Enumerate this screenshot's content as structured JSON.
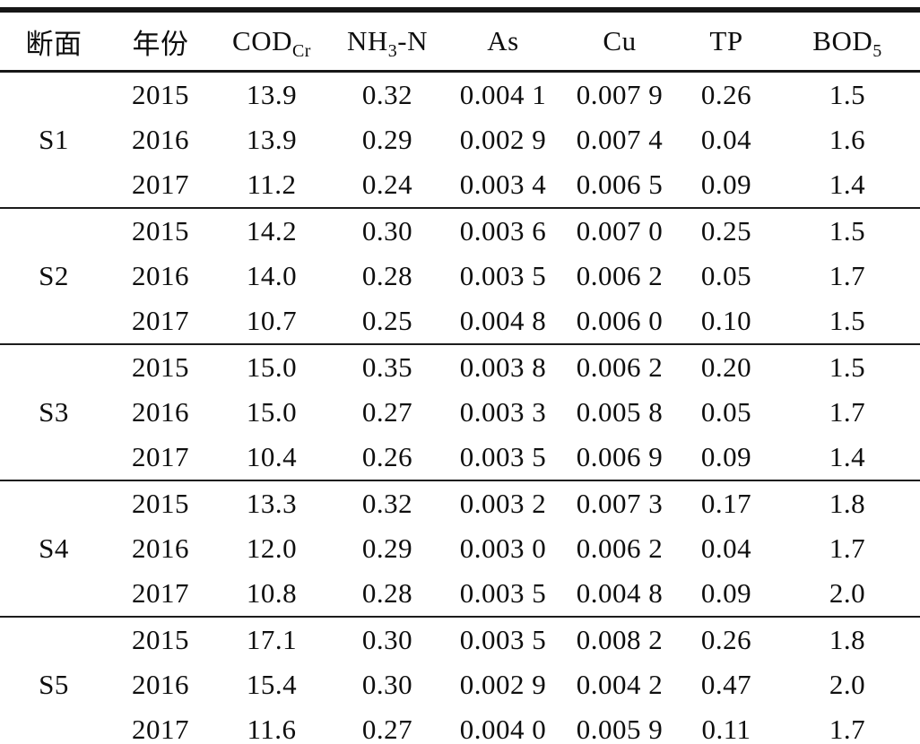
{
  "table": {
    "headers": [
      {
        "base": "断面",
        "sub": "",
        "rest": ""
      },
      {
        "base": "年份",
        "sub": "",
        "rest": ""
      },
      {
        "base": "COD",
        "sub": "Cr",
        "rest": ""
      },
      {
        "base": "NH",
        "sub": "3",
        "rest": "-N"
      },
      {
        "base": "As",
        "sub": "",
        "rest": ""
      },
      {
        "base": "Cu",
        "sub": "",
        "rest": ""
      },
      {
        "base": "TP",
        "sub": "",
        "rest": ""
      },
      {
        "base": "BOD",
        "sub": "5",
        "rest": ""
      }
    ],
    "groups": [
      {
        "section": "S1",
        "rows": [
          {
            "year": "2015",
            "cod_cr": "13.9",
            "nh3_n": "0.32",
            "as": "0.004 1",
            "cu": "0.007 9",
            "tp": "0.26",
            "bod5": "1.5"
          },
          {
            "year": "2016",
            "cod_cr": "13.9",
            "nh3_n": "0.29",
            "as": "0.002 9",
            "cu": "0.007 4",
            "tp": "0.04",
            "bod5": "1.6"
          },
          {
            "year": "2017",
            "cod_cr": "11.2",
            "nh3_n": "0.24",
            "as": "0.003 4",
            "cu": "0.006 5",
            "tp": "0.09",
            "bod5": "1.4"
          }
        ]
      },
      {
        "section": "S2",
        "rows": [
          {
            "year": "2015",
            "cod_cr": "14.2",
            "nh3_n": "0.30",
            "as": "0.003 6",
            "cu": "0.007 0",
            "tp": "0.25",
            "bod5": "1.5"
          },
          {
            "year": "2016",
            "cod_cr": "14.0",
            "nh3_n": "0.28",
            "as": "0.003 5",
            "cu": "0.006 2",
            "tp": "0.05",
            "bod5": "1.7"
          },
          {
            "year": "2017",
            "cod_cr": "10.7",
            "nh3_n": "0.25",
            "as": "0.004 8",
            "cu": "0.006 0",
            "tp": "0.10",
            "bod5": "1.5"
          }
        ]
      },
      {
        "section": "S3",
        "rows": [
          {
            "year": "2015",
            "cod_cr": "15.0",
            "nh3_n": "0.35",
            "as": "0.003 8",
            "cu": "0.006 2",
            "tp": "0.20",
            "bod5": "1.5"
          },
          {
            "year": "2016",
            "cod_cr": "15.0",
            "nh3_n": "0.27",
            "as": "0.003 3",
            "cu": "0.005 8",
            "tp": "0.05",
            "bod5": "1.7"
          },
          {
            "year": "2017",
            "cod_cr": "10.4",
            "nh3_n": "0.26",
            "as": "0.003 5",
            "cu": "0.006 9",
            "tp": "0.09",
            "bod5": "1.4"
          }
        ]
      },
      {
        "section": "S4",
        "rows": [
          {
            "year": "2015",
            "cod_cr": "13.3",
            "nh3_n": "0.32",
            "as": "0.003 2",
            "cu": "0.007 3",
            "tp": "0.17",
            "bod5": "1.8"
          },
          {
            "year": "2016",
            "cod_cr": "12.0",
            "nh3_n": "0.29",
            "as": "0.003 0",
            "cu": "0.006 2",
            "tp": "0.04",
            "bod5": "1.7"
          },
          {
            "year": "2017",
            "cod_cr": "10.8",
            "nh3_n": "0.28",
            "as": "0.003 5",
            "cu": "0.004 8",
            "tp": "0.09",
            "bod5": "2.0"
          }
        ]
      },
      {
        "section": "S5",
        "rows": [
          {
            "year": "2015",
            "cod_cr": "17.1",
            "nh3_n": "0.30",
            "as": "0.003 5",
            "cu": "0.008 2",
            "tp": "0.26",
            "bod5": "1.8"
          },
          {
            "year": "2016",
            "cod_cr": "15.4",
            "nh3_n": "0.30",
            "as": "0.002 9",
            "cu": "0.004 2",
            "tp": "0.47",
            "bod5": "2.0"
          },
          {
            "year": "2017",
            "cod_cr": "11.6",
            "nh3_n": "0.27",
            "as": "0.004 0",
            "cu": "0.005 9",
            "tp": "0.11",
            "bod5": "1.7"
          }
        ]
      }
    ]
  }
}
